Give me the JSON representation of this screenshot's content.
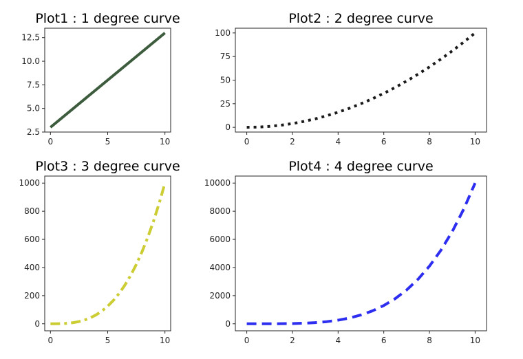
{
  "chart_data": [
    {
      "type": "line",
      "title": "Plot1 : 1 degree curve",
      "xlabel": "",
      "ylabel": "",
      "xlim": [
        -0.5,
        10.5
      ],
      "ylim": [
        2.5,
        13.5
      ],
      "xticks": [
        0,
        5,
        10
      ],
      "yticks": [
        2.5,
        5.0,
        7.5,
        10.0,
        12.5
      ],
      "x": [
        0,
        10
      ],
      "series": [
        {
          "values": [
            3,
            13
          ],
          "color": "#3d5c3d",
          "style": "solid"
        }
      ]
    },
    {
      "type": "line",
      "title": "Plot2 : 2 degree curve",
      "xlabel": "",
      "ylabel": "",
      "xlim": [
        -0.5,
        10.5
      ],
      "ylim": [
        -5,
        105
      ],
      "xticks": [
        0,
        2,
        4,
        6,
        8,
        10
      ],
      "yticks": [
        0,
        25,
        50,
        75,
        100
      ],
      "x": [
        0,
        0.5,
        1,
        1.5,
        2,
        2.5,
        3,
        3.5,
        4,
        4.5,
        5,
        5.5,
        6,
        6.5,
        7,
        7.5,
        8,
        8.5,
        9,
        9.5,
        10
      ],
      "series": [
        {
          "values": [
            0,
            0.25,
            1,
            2.25,
            4,
            6.25,
            9,
            12.25,
            16,
            20.25,
            25,
            30.25,
            36,
            42.25,
            49,
            56.25,
            64,
            72.25,
            81,
            90.25,
            100
          ],
          "color": "#1a1a1a",
          "style": "dotted"
        }
      ]
    },
    {
      "type": "line",
      "title": "Plot3 : 3 degree curve",
      "xlabel": "",
      "ylabel": "",
      "xlim": [
        -0.5,
        10.5
      ],
      "ylim": [
        -50,
        1050
      ],
      "xticks": [
        0,
        5,
        10
      ],
      "yticks": [
        0,
        200,
        400,
        600,
        800,
        1000
      ],
      "x": [
        0,
        0.5,
        1,
        1.5,
        2,
        2.5,
        3,
        3.5,
        4,
        4.5,
        5,
        5.5,
        6,
        6.5,
        7,
        7.5,
        8,
        8.5,
        9,
        9.5,
        10
      ],
      "series": [
        {
          "values": [
            0,
            0.125,
            1,
            3.375,
            8,
            15.625,
            27,
            42.875,
            64,
            91.125,
            125,
            166.375,
            216,
            274.625,
            343,
            421.875,
            512,
            614.125,
            729,
            857.375,
            1000
          ],
          "color": "#cccc33",
          "style": "dashdot"
        }
      ]
    },
    {
      "type": "line",
      "title": "Plot4 : 4 degree curve",
      "xlabel": "",
      "ylabel": "",
      "xlim": [
        -0.5,
        10.5
      ],
      "ylim": [
        -500,
        10500
      ],
      "xticks": [
        0,
        2,
        4,
        6,
        8,
        10
      ],
      "yticks": [
        0,
        2000,
        4000,
        6000,
        8000,
        10000
      ],
      "x": [
        0,
        0.5,
        1,
        1.5,
        2,
        2.5,
        3,
        3.5,
        4,
        4.5,
        5,
        5.5,
        6,
        6.5,
        7,
        7.5,
        8,
        8.5,
        9,
        9.5,
        10
      ],
      "series": [
        {
          "values": [
            0,
            0.0625,
            1,
            5.0625,
            16,
            39.0625,
            81,
            150.0625,
            256,
            410.0625,
            625,
            915.0625,
            1296,
            1785.0625,
            2401,
            3164.0625,
            4096,
            5220.0625,
            6561,
            8145.0625,
            10000
          ],
          "color": "#2e2ef0",
          "style": "dashed"
        }
      ]
    }
  ]
}
